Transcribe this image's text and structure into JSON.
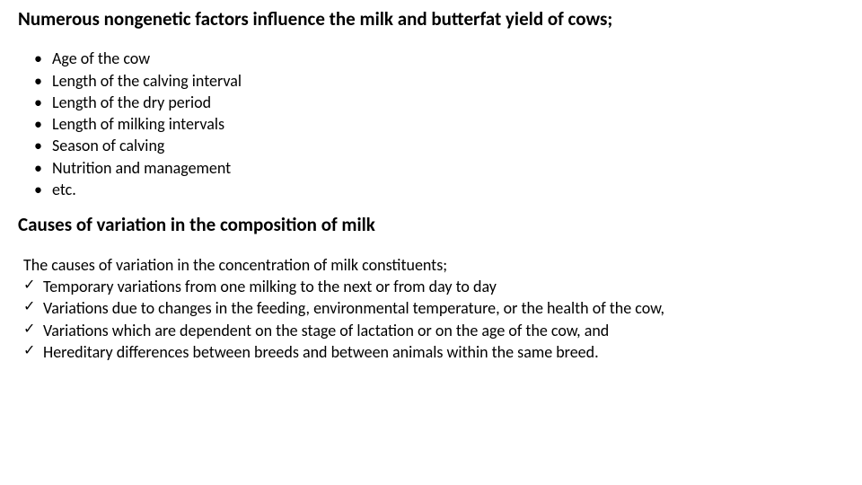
{
  "colors": {
    "background": "#ffffff",
    "text": "#000000"
  },
  "typography": {
    "heading_fontsize": 21,
    "heading_weight": 700,
    "body_fontsize": 18,
    "body_weight": 400,
    "font_family": "Calibri"
  },
  "heading1": "Numerous nongenetic factors influence the milk and butterfat yield of cows;",
  "bullets": {
    "0": "Age of the cow",
    "1": "Length of the calving interval",
    "2": "Length of the dry period",
    "3": "Length of milking intervals",
    "4": "Season of calving",
    "5": "Nutrition and management",
    "6": "etc."
  },
  "heading2": "Causes of variation in the composition of milk",
  "intro": "The causes of variation in the concentration of milk constituents;",
  "checks": {
    "0": "Temporary variations from one milking to the next or from day to day",
    "1": "Variations due to changes in the feeding, environmental temperature, or the health of the cow,",
    "2": "Variations which are dependent on the stage of lactation or on the age of the cow, and",
    "3": "Hereditary differences between breeds and between animals within the same breed."
  }
}
